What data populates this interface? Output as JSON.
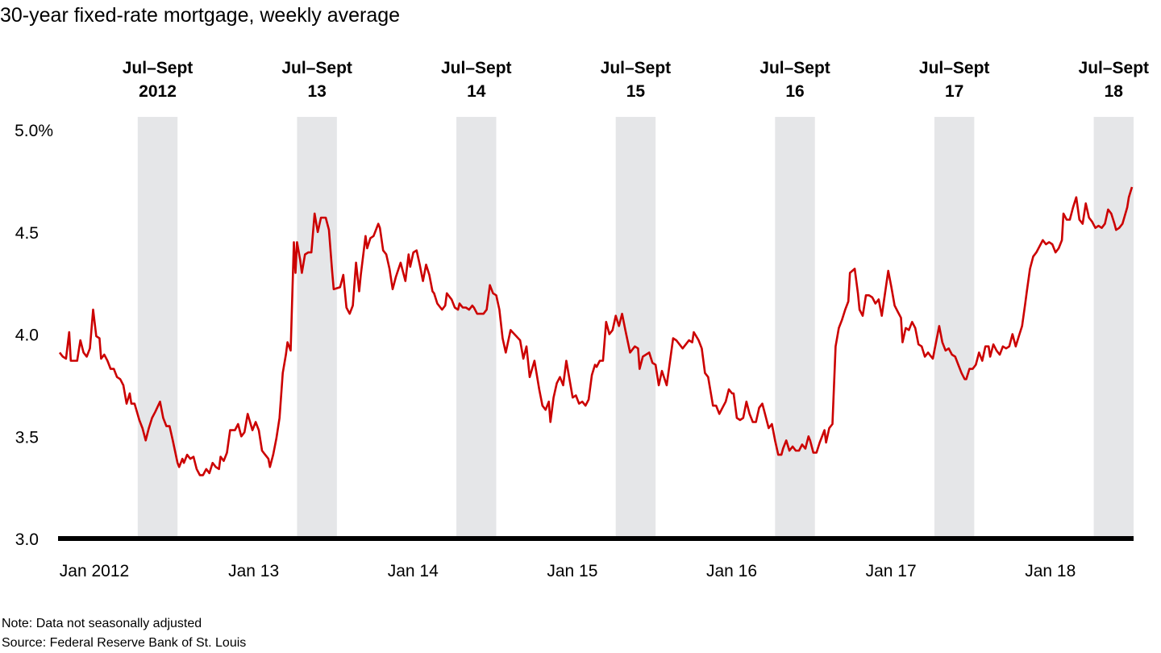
{
  "chart_data": {
    "type": "line",
    "title": "30-year fixed-rate mortgage, weekly average",
    "xlabel": "",
    "ylabel": "",
    "y_unit": "%",
    "ylim": [
      3.0,
      5.0
    ],
    "xlim": [
      2012.0,
      2018.75
    ],
    "grid": false,
    "legend": "none",
    "y_ticks": [
      {
        "value": 3.0,
        "label": "3.0"
      },
      {
        "value": 3.5,
        "label": "3.5"
      },
      {
        "value": 4.0,
        "label": "4.0"
      },
      {
        "value": 4.5,
        "label": "4.5"
      },
      {
        "value": 5.0,
        "label": "5.0%"
      }
    ],
    "x_ticks": [
      {
        "value": 2012.0,
        "label": "Jan 2012"
      },
      {
        "value": 2013.0,
        "label": "Jan 13"
      },
      {
        "value": 2014.0,
        "label": "Jan 14"
      },
      {
        "value": 2015.0,
        "label": "Jan 15"
      },
      {
        "value": 2016.0,
        "label": "Jan 16"
      },
      {
        "value": 2017.0,
        "label": "Jan 17"
      },
      {
        "value": 2018.0,
        "label": "Jan 18"
      }
    ],
    "shaded_periods": [
      {
        "start": 2012.5,
        "end": 2012.75,
        "label_line1": "Jul–Sept",
        "label_line2": "2012"
      },
      {
        "start": 2013.5,
        "end": 2013.75,
        "label_line1": "Jul–Sept",
        "label_line2": "13"
      },
      {
        "start": 2014.5,
        "end": 2014.75,
        "label_line1": "Jul–Sept",
        "label_line2": "14"
      },
      {
        "start": 2015.5,
        "end": 2015.75,
        "label_line1": "Jul–Sept",
        "label_line2": "15"
      },
      {
        "start": 2016.5,
        "end": 2016.75,
        "label_line1": "Jul–Sept",
        "label_line2": "16"
      },
      {
        "start": 2017.5,
        "end": 2017.75,
        "label_line1": "Jul–Sept",
        "label_line2": "17"
      },
      {
        "start": 2018.5,
        "end": 2018.75,
        "label_line1": "Jul–Sept",
        "label_line2": "18"
      }
    ],
    "series": [
      {
        "name": "30-year fixed-rate mortgage",
        "color": "#CC0000",
        "x": [
          2012.01,
          2012.03,
          2012.05,
          2012.07,
          2012.08,
          2012.12,
          2012.14,
          2012.16,
          2012.18,
          2012.2,
          2012.22,
          2012.24,
          2012.26,
          2012.27,
          2012.29,
          2012.31,
          2012.33,
          2012.35,
          2012.37,
          2012.39,
          2012.41,
          2012.43,
          2012.45,
          2012.46,
          2012.48,
          2012.51,
          2012.53,
          2012.55,
          2012.57,
          2012.59,
          2012.61,
          2012.64,
          2012.66,
          2012.68,
          2012.7,
          2012.72,
          2012.75,
          2012.76,
          2012.78,
          2012.79,
          2012.81,
          2012.83,
          2012.85,
          2012.87,
          2012.89,
          2012.91,
          2012.93,
          2012.95,
          2012.97,
          2012.99,
          2013.01,
          2013.02,
          2013.04,
          2013.06,
          2013.08,
          2013.11,
          2013.13,
          2013.15,
          2013.17,
          2013.19,
          2013.22,
          2013.24,
          2013.26,
          2013.28,
          2013.3,
          2013.32,
          2013.33,
          2013.35,
          2013.37,
          2013.39,
          2013.41,
          2013.43,
          2013.44,
          2013.46,
          2013.48,
          2013.49,
          2013.5,
          2013.52,
          2013.53,
          2013.55,
          2013.57,
          2013.59,
          2013.61,
          2013.63,
          2013.65,
          2013.68,
          2013.7,
          2013.72,
          2013.73,
          2013.77,
          2013.79,
          2013.81,
          2013.83,
          2013.85,
          2013.87,
          2013.89,
          2013.9,
          2013.93,
          2013.94,
          2013.96,
          2013.98,
          2014.01,
          2014.02,
          2014.04,
          2014.06,
          2014.08,
          2014.1,
          2014.12,
          2014.15,
          2014.18,
          2014.2,
          2014.21,
          2014.23,
          2014.25,
          2014.27,
          2014.29,
          2014.31,
          2014.33,
          2014.35,
          2014.36,
          2014.38,
          2014.41,
          2014.43,
          2014.44,
          2014.47,
          2014.49,
          2014.51,
          2014.52,
          2014.54,
          2014.56,
          2014.58,
          2014.6,
          2014.61,
          2014.63,
          2014.67,
          2014.69,
          2014.71,
          2014.73,
          2014.75,
          2014.77,
          2014.79,
          2014.81,
          2014.84,
          2014.9,
          2014.92,
          2014.94,
          2014.96,
          2014.99,
          2015.02,
          2015.04,
          2015.06,
          2015.08,
          2015.09,
          2015.11,
          2015.13,
          2015.15,
          2015.17,
          2015.19,
          2015.23,
          2015.25,
          2015.27,
          2015.29,
          2015.31,
          2015.33,
          2015.35,
          2015.37,
          2015.38,
          2015.4,
          2015.42,
          2015.44,
          2015.46,
          2015.48,
          2015.5,
          2015.52,
          2015.54,
          2015.56,
          2015.59,
          2015.62,
          2015.64,
          2015.65,
          2015.67,
          2015.71,
          2015.73,
          2015.75,
          2015.77,
          2015.79,
          2015.82,
          2015.86,
          2015.88,
          2015.92,
          2015.96,
          2015.98,
          2015.99,
          2016.02,
          2016.04,
          2016.06,
          2016.08,
          2016.11,
          2016.13,
          2016.15,
          2016.17,
          2016.19,
          2016.21,
          2016.23,
          2016.24,
          2016.26,
          2016.28,
          2016.3,
          2016.32,
          2016.34,
          2016.36,
          2016.38,
          2016.4,
          2016.42,
          2016.44,
          2016.46,
          2016.48,
          2016.5,
          2016.52,
          2016.54,
          2016.55,
          2016.57,
          2016.59,
          2016.61,
          2016.63,
          2016.65,
          2016.67,
          2016.69,
          2016.71,
          2016.72,
          2016.74,
          2016.76,
          2016.78,
          2016.81,
          2016.82,
          2016.84,
          2016.86,
          2016.88,
          2016.9,
          2016.92,
          2016.94,
          2016.96,
          2016.97,
          2017.0,
          2017.02,
          2017.03,
          2017.05,
          2017.07,
          2017.09,
          2017.11,
          2017.13,
          2017.15,
          2017.17,
          2017.21,
          2017.23,
          2017.25,
          2017.27,
          2017.29,
          2017.3,
          2017.32,
          2017.34,
          2017.36,
          2017.38,
          2017.4,
          2017.42,
          2017.44,
          2017.46,
          2017.47,
          2017.49,
          2017.53,
          2017.55,
          2017.57,
          2017.59,
          2017.61,
          2017.63,
          2017.65,
          2017.67,
          2017.69,
          2017.7,
          2017.72,
          2017.74,
          2017.76,
          2017.78,
          2017.8,
          2017.82,
          2017.84,
          2017.85,
          2017.87,
          2017.89,
          2017.91,
          2017.93,
          2017.95,
          2017.97,
          2017.99,
          2018.01,
          2018.03,
          2018.05,
          2018.07,
          2018.08,
          2018.1,
          2018.12,
          2018.14,
          2018.16,
          2018.18,
          2018.2,
          2018.22,
          2018.24,
          2018.26,
          2018.28,
          2018.3,
          2018.31,
          2018.33,
          2018.35,
          2018.37,
          2018.39,
          2018.41,
          2018.43,
          2018.45,
          2018.47,
          2018.49,
          2018.51,
          2018.53,
          2018.55,
          2018.57,
          2018.59,
          2018.61,
          2018.63,
          2018.64,
          2018.66,
          2018.68,
          2018.71,
          2018.72,
          2018.74
        ],
        "values": [
          3.91,
          3.89,
          3.88,
          4.01,
          3.87,
          3.87,
          3.97,
          3.91,
          3.89,
          3.93,
          4.12,
          3.99,
          3.98,
          3.88,
          3.9,
          3.87,
          3.83,
          3.83,
          3.79,
          3.78,
          3.75,
          3.66,
          3.71,
          3.66,
          3.66,
          3.58,
          3.54,
          3.48,
          3.54,
          3.59,
          3.62,
          3.67,
          3.59,
          3.55,
          3.55,
          3.48,
          3.37,
          3.35,
          3.39,
          3.37,
          3.41,
          3.39,
          3.4,
          3.34,
          3.31,
          3.31,
          3.34,
          3.32,
          3.37,
          3.35,
          3.34,
          3.4,
          3.38,
          3.42,
          3.53,
          3.53,
          3.56,
          3.5,
          3.52,
          3.61,
          3.53,
          3.57,
          3.53,
          3.43,
          3.41,
          3.39,
          3.35,
          3.41,
          3.49,
          3.59,
          3.81,
          3.9,
          3.96,
          3.92,
          4.45,
          4.3,
          4.45,
          4.36,
          4.3,
          4.39,
          4.4,
          4.4,
          4.59,
          4.5,
          4.57,
          4.57,
          4.51,
          4.31,
          4.22,
          4.23,
          4.29,
          4.13,
          4.1,
          4.14,
          4.35,
          4.21,
          4.29,
          4.48,
          4.42,
          4.47,
          4.48,
          4.54,
          4.52,
          4.41,
          4.39,
          4.32,
          4.22,
          4.28,
          4.35,
          4.26,
          4.39,
          4.33,
          4.4,
          4.41,
          4.34,
          4.26,
          4.34,
          4.29,
          4.21,
          4.2,
          4.15,
          4.12,
          4.14,
          4.2,
          4.17,
          4.13,
          4.12,
          4.15,
          4.13,
          4.13,
          4.12,
          4.14,
          4.13,
          4.1,
          4.1,
          4.12,
          4.24,
          4.2,
          4.19,
          4.12,
          3.98,
          3.91,
          4.02,
          3.97,
          3.88,
          3.94,
          3.79,
          3.87,
          3.73,
          3.65,
          3.63,
          3.67,
          3.57,
          3.69,
          3.76,
          3.79,
          3.75,
          3.87,
          3.69,
          3.7,
          3.66,
          3.67,
          3.65,
          3.68,
          3.8,
          3.85,
          3.84,
          3.87,
          3.87,
          4.06,
          4.0,
          4.02,
          4.09,
          4.04,
          4.1,
          4.02,
          3.91,
          3.94,
          3.93,
          3.83,
          3.89,
          3.91,
          3.86,
          3.85,
          3.75,
          3.82,
          3.75,
          3.98,
          3.97,
          3.93,
          3.97,
          3.96,
          4.01,
          3.97,
          3.93,
          3.81,
          3.79,
          3.65,
          3.65,
          3.61,
          3.64,
          3.67,
          3.73,
          3.71,
          3.71,
          3.59,
          3.58,
          3.59,
          3.67,
          3.61,
          3.57,
          3.57,
          3.64,
          3.66,
          3.6,
          3.54,
          3.56,
          3.48,
          3.41,
          3.41,
          3.44,
          3.48,
          3.43,
          3.45,
          3.43,
          3.43,
          3.46,
          3.44,
          3.5,
          3.48,
          3.42,
          3.42,
          3.47,
          3.53,
          3.47,
          3.54,
          3.56,
          3.94,
          4.03,
          4.07,
          4.12,
          4.16,
          4.3,
          4.32,
          4.2,
          4.12,
          4.09,
          4.19,
          4.19,
          4.18,
          4.15,
          4.17,
          4.09,
          4.31,
          4.23,
          4.14,
          4.11,
          4.08,
          3.96,
          4.03,
          4.02,
          4.06,
          4.03,
          3.95,
          3.94,
          3.89,
          3.91,
          3.9,
          3.88,
          4.04,
          3.96,
          3.92,
          3.93,
          3.9,
          3.89,
          3.85,
          3.81,
          3.78,
          3.78,
          3.83,
          3.83,
          3.85,
          3.91,
          3.87,
          3.94,
          3.94,
          3.89,
          3.95,
          3.92,
          3.9,
          3.94,
          3.93,
          3.94,
          4.0,
          3.94,
          3.99,
          4.04,
          4.15,
          4.21,
          4.32,
          4.38,
          4.4,
          4.43,
          4.46,
          4.44,
          4.45,
          4.44,
          4.4,
          4.42,
          4.46,
          4.59,
          4.56,
          4.56,
          4.62,
          4.67,
          4.56,
          4.54,
          4.64,
          4.57,
          4.55,
          4.52,
          4.53,
          4.52,
          4.54,
          4.61,
          4.59,
          4.54,
          4.51,
          4.52,
          4.54,
          4.62,
          4.67,
          4.72
        ]
      }
    ],
    "notes": [
      "Note: Data not seasonally adjusted",
      "Source: Federal Reserve Bank of St. Louis"
    ],
    "colors": {
      "line": "#CC0000",
      "band": "#E5E6E8",
      "axis": "#000000"
    }
  }
}
